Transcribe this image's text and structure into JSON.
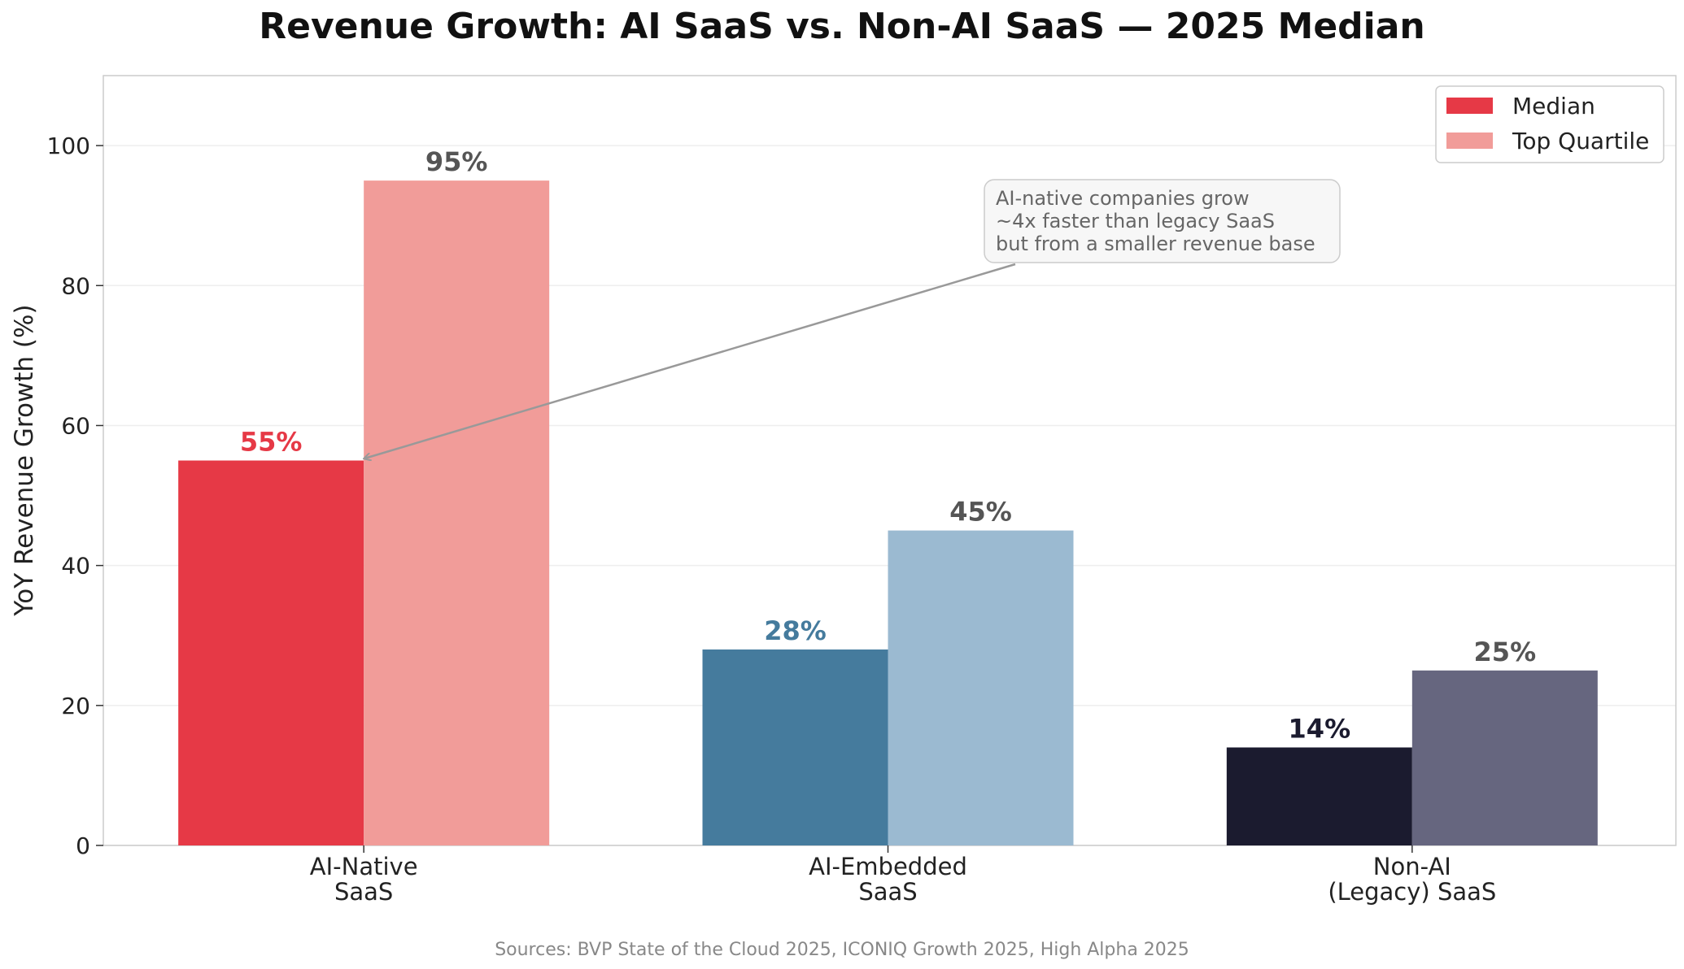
{
  "chart_data": {
    "type": "bar",
    "title": "Revenue Growth: AI SaaS vs. Non-AI SaaS — 2025 Median",
    "xlabel": "",
    "ylabel": "YoY Revenue Growth (%)",
    "ylim": [
      0,
      110
    ],
    "yticks": [
      "0",
      "20",
      "40",
      "60",
      "80",
      "100"
    ],
    "categories": [
      [
        "AI-Native",
        "SaaS"
      ],
      [
        "AI-Embedded",
        "SaaS"
      ],
      [
        "Non-AI",
        "(Legacy) SaaS"
      ]
    ],
    "series": [
      {
        "name": "Median",
        "values": [
          55,
          28,
          14
        ],
        "labels": [
          "55%",
          "28%",
          "14%"
        ],
        "colors": [
          "#e63946",
          "#457b9d",
          "#1b1b2f"
        ],
        "label_colors": [
          "#e63946",
          "#457b9d",
          "#1b1b2f"
        ],
        "legend_color": "#e63946"
      },
      {
        "name": "Top Quartile",
        "values": [
          95,
          45,
          25
        ],
        "labels": [
          "95%",
          "45%",
          "25%"
        ],
        "colors": [
          "#f19c99",
          "#9bbad1",
          "#66667f"
        ],
        "label_colors": [
          "#555555",
          "#555555",
          "#555555"
        ],
        "legend_color": "#f19c99"
      }
    ],
    "grid": "horizontal",
    "legend": "top-right",
    "annotation": {
      "lines": [
        "AI-native companies grow",
        "~4x faster than legacy SaaS",
        "but from a smaller revenue base"
      ],
      "points_to": {
        "category": "AI-Native",
        "value": 55
      }
    },
    "source": "Sources: BVP State of the Cloud 2025, ICONIQ Growth 2025, High Alpha 2025"
  }
}
